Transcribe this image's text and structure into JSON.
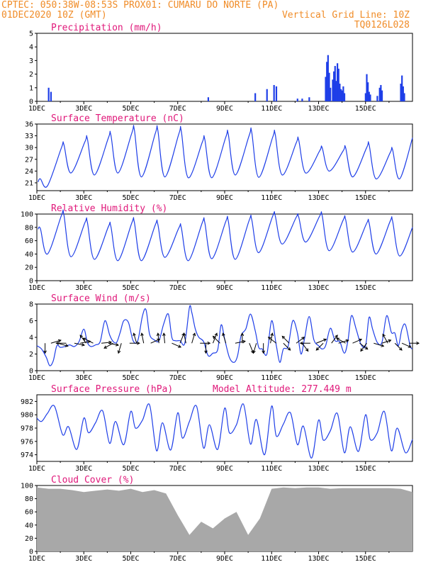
{
  "header": {
    "line1_left": "CPTEC:  050:38W-08:53S  PROX01: CUMARU DO NORTE (PA)",
    "line2_left": "01DEC2020 10Z (GMT)",
    "line2_right": "Vertical Grid Line: 10Z",
    "line3_right": "TQ0126L028"
  },
  "colors": {
    "series": "#1f3fe8",
    "cloud": "#a8a8a8",
    "header": "#f08c28",
    "title": "#e0187a"
  },
  "chart_data": [
    {
      "id": "precip",
      "type": "bar",
      "title": "Precipitation (mm/h)",
      "ylim": [
        0,
        5
      ],
      "yticks": [
        "0",
        "1",
        "2",
        "3",
        "4",
        "5"
      ],
      "xticks": [
        "1DEC",
        "3DEC",
        "5DEC",
        "7DEC",
        "9DEC",
        "11DEC",
        "13DEC",
        "15DEC"
      ],
      "x_days": [
        0.5,
        0.6,
        7.3,
        9.3,
        9.8,
        10.1,
        10.2,
        11.1,
        11.3,
        11.6,
        12.3,
        12.35,
        12.4,
        12.45,
        12.5,
        12.6,
        12.65,
        12.7,
        12.75,
        12.8,
        12.85,
        12.9,
        12.95,
        13.0,
        13.05,
        13.1,
        14.0,
        14.05,
        14.1,
        14.15,
        14.2,
        14.5,
        14.6,
        14.65,
        14.7,
        15.5,
        15.55,
        15.6,
        15.65
      ],
      "values": [
        1.0,
        0.7,
        0.3,
        0.6,
        0.9,
        1.2,
        1.1,
        0.2,
        0.2,
        0.3,
        1.8,
        2.9,
        3.4,
        2.1,
        1.0,
        1.6,
        2.2,
        2.6,
        1.5,
        2.8,
        2.4,
        1.3,
        0.9,
        0.8,
        1.1,
        0.6,
        0.6,
        2.0,
        1.4,
        0.7,
        0.5,
        0.4,
        1.0,
        1.2,
        0.8,
        1.3,
        1.9,
        1.1,
        0.6
      ]
    },
    {
      "id": "temp",
      "type": "line",
      "title": "Surface Temperature (nC)",
      "ylim": [
        19,
        36
      ],
      "yticks": [
        "21",
        "24",
        "27",
        "30",
        "33",
        "36"
      ],
      "xticks": [
        "1DEC",
        "3DEC",
        "5DEC",
        "7DEC",
        "9DEC",
        "11DEC",
        "13DEC",
        "15DEC"
      ],
      "daily_min": [
        20.2,
        23.5,
        23.0,
        23.5,
        22.5,
        22.5,
        22.3,
        22.3,
        23.0,
        22.4,
        23.0,
        23.5,
        24.0,
        22.5,
        22.0,
        22.0
      ],
      "daily_max": [
        22.0,
        30.8,
        32.3,
        33.3,
        34.6,
        34.5,
        34.3,
        32.2,
        33.5,
        34.0,
        33.5,
        32.0,
        30.0,
        30.0,
        30.8,
        29.5,
        32.5
      ]
    },
    {
      "id": "rh",
      "type": "line",
      "title": "Relative Humidity (%)",
      "ylim": [
        0,
        100
      ],
      "yticks": [
        "0",
        "20",
        "40",
        "60",
        "80",
        "100"
      ],
      "xticks": [
        "1DEC",
        "3DEC",
        "5DEC",
        "7DEC",
        "9DEC",
        "11DEC",
        "13DEC",
        "15DEC"
      ],
      "daily_max": [
        78,
        99,
        88,
        82,
        88,
        85,
        80,
        88,
        90,
        92,
        98,
        96,
        98,
        92,
        87,
        90,
        80
      ],
      "daily_min": [
        40,
        36,
        32,
        30,
        30,
        35,
        30,
        33,
        32,
        42,
        55,
        58,
        45,
        43,
        40,
        37,
        45
      ]
    },
    {
      "id": "wind",
      "type": "line",
      "title": "Surface Wind (m/s)",
      "ylim": [
        0,
        8
      ],
      "yticks": [
        "0",
        "2",
        "4",
        "6",
        "8"
      ],
      "xticks": [
        "1DEC",
        "3DEC",
        "5DEC",
        "7DEC",
        "9DEC",
        "11DEC",
        "13DEC",
        "15DEC"
      ],
      "x_days": [
        0,
        0.2,
        0.4,
        0.55,
        0.7,
        0.85,
        1.0,
        1.2,
        1.4,
        1.6,
        1.8,
        2.0,
        2.15,
        2.3,
        2.5,
        2.7,
        2.9,
        3.1,
        3.25,
        3.4,
        3.55,
        3.7,
        3.9,
        4.1,
        4.3,
        4.5,
        4.65,
        4.8,
        5.0,
        5.2,
        5.4,
        5.6,
        5.75,
        5.9,
        6.1,
        6.3,
        6.5,
        6.6,
        6.75,
        6.9,
        7.1,
        7.3,
        7.5,
        7.7,
        7.85,
        8.0,
        8.2,
        8.4,
        8.55,
        8.7,
        8.9,
        9.1,
        9.3,
        9.45,
        9.6,
        9.8,
        10.0,
        10.2,
        10.35,
        10.5,
        10.7,
        10.9,
        11.1,
        11.25,
        11.4,
        11.6,
        11.8,
        12.0,
        12.15,
        12.3,
        12.5,
        12.7,
        12.9,
        13.1,
        13.25,
        13.4,
        13.6,
        13.8,
        14.0,
        14.15,
        14.3,
        14.5,
        14.7,
        14.9,
        15.1,
        15.25,
        15.4,
        15.55,
        15.7,
        15.9,
        16.0
      ],
      "values": [
        3.0,
        2.6,
        1.6,
        0.6,
        1.2,
        3.0,
        2.8,
        2.9,
        3.1,
        2.9,
        3.5,
        5.0,
        3.4,
        2.9,
        3.1,
        3.5,
        6.0,
        4.3,
        3.5,
        3.4,
        4.6,
        6.0,
        5.8,
        3.6,
        3.6,
        6.6,
        7.3,
        4.4,
        3.7,
        3.6,
        5.6,
        6.8,
        4.0,
        3.6,
        3.6,
        3.3,
        7.6,
        7.0,
        5.0,
        4.0,
        3.5,
        1.8,
        2.1,
        2.5,
        5.5,
        3.8,
        1.6,
        1.0,
        1.8,
        4.2,
        5.0,
        6.8,
        4.8,
        2.8,
        2.6,
        2.0,
        6.0,
        3.0,
        1.0,
        2.6,
        2.9,
        6.0,
        4.5,
        2.0,
        3.8,
        6.5,
        3.7,
        3.0,
        2.6,
        3.0,
        5.1,
        3.6,
        3.5,
        2.1,
        3.6,
        6.6,
        5.0,
        3.2,
        3.0,
        6.4,
        5.0,
        3.4,
        3.4,
        6.6,
        4.6,
        4.5,
        3.0,
        5.0,
        5.5,
        3.0,
        2.6
      ],
      "barbs": [
        [
          0.35,
          0,
          -1
        ],
        [
          0.6,
          1,
          0.3
        ],
        [
          0.9,
          1,
          -0.3
        ],
        [
          1.25,
          -1,
          0
        ],
        [
          1.6,
          1,
          -0.2
        ],
        [
          1.85,
          1,
          0.2
        ],
        [
          2.1,
          -0.6,
          0.8
        ],
        [
          2.4,
          -1,
          0.5
        ],
        [
          2.75,
          1,
          0.1
        ],
        [
          3.05,
          1,
          -0.2
        ],
        [
          3.25,
          -0.9,
          -0.5
        ],
        [
          3.6,
          -0.3,
          -1
        ],
        [
          3.95,
          1,
          0
        ],
        [
          4.25,
          -0.3,
          1
        ],
        [
          4.55,
          -0.2,
          1
        ],
        [
          4.85,
          0.9,
          0.4
        ],
        [
          5.2,
          -0.1,
          1
        ],
        [
          5.45,
          -0.1,
          1
        ],
        [
          5.75,
          0.9,
          -0.4
        ],
        [
          6.1,
          0.4,
          1
        ],
        [
          6.35,
          -0.2,
          1
        ],
        [
          6.6,
          0.3,
          1
        ],
        [
          6.95,
          1,
          0
        ],
        [
          7.2,
          0,
          -1
        ],
        [
          7.5,
          0.4,
          1
        ],
        [
          7.8,
          -0.7,
          0.7
        ],
        [
          8.05,
          -0.3,
          1
        ],
        [
          8.45,
          1,
          0.2
        ],
        [
          8.75,
          0,
          1
        ],
        [
          9.05,
          0.4,
          -1
        ],
        [
          9.35,
          -0.3,
          -1
        ],
        [
          9.65,
          0,
          -1
        ],
        [
          9.95,
          0.2,
          1
        ],
        [
          10.2,
          -0.8,
          0.6
        ],
        [
          10.5,
          0.7,
          -0.7
        ],
        [
          10.75,
          -0.7,
          0.7
        ],
        [
          11.05,
          0.8,
          0.6
        ],
        [
          11.3,
          0.6,
          -0.8
        ],
        [
          11.65,
          -1,
          0
        ],
        [
          11.9,
          1,
          0.4
        ],
        [
          12.2,
          -0.7,
          -0.7
        ],
        [
          12.55,
          0.6,
          0.8
        ],
        [
          12.85,
          1,
          0.3
        ],
        [
          13.15,
          -0.9,
          0.5
        ],
        [
          13.45,
          0.9,
          0.4
        ],
        [
          13.75,
          0.8,
          -0.6
        ],
        [
          14.05,
          -0.6,
          -0.8
        ],
        [
          14.35,
          1,
          -0.3
        ],
        [
          14.7,
          0.9,
          0.3
        ],
        [
          14.95,
          -0.5,
          0.9
        ],
        [
          15.25,
          0.7,
          -0.7
        ],
        [
          15.55,
          0.9,
          -0.4
        ],
        [
          15.85,
          1,
          0
        ]
      ]
    },
    {
      "id": "pressure",
      "type": "line",
      "title": "Surface Pressure (hPa)",
      "annotation": "Model Altitude: 277.449 m",
      "ylim": [
        973,
        983
      ],
      "yticks": [
        "974",
        "976",
        "978",
        "980",
        "982"
      ],
      "xticks": [
        "1DEC",
        "3DEC",
        "5DEC",
        "7DEC",
        "9DEC",
        "11DEC",
        "13DEC",
        "15DEC"
      ],
      "x_days": [
        0,
        0.2,
        0.45,
        0.75,
        1.1,
        1.35,
        1.7,
        2.0,
        2.2,
        2.5,
        2.8,
        3.1,
        3.35,
        3.7,
        4.0,
        4.2,
        4.5,
        4.8,
        5.1,
        5.35,
        5.7,
        6.0,
        6.2,
        6.5,
        6.8,
        7.1,
        7.35,
        7.7,
        8.0,
        8.2,
        8.5,
        8.8,
        9.1,
        9.35,
        9.7,
        10.0,
        10.2,
        10.5,
        10.8,
        11.1,
        11.35,
        11.7,
        12.0,
        12.2,
        12.5,
        12.8,
        13.1,
        13.35,
        13.7,
        14.0,
        14.2,
        14.5,
        14.8,
        15.1,
        15.35,
        15.7,
        16.0
      ],
      "values": [
        979.5,
        979.0,
        980.2,
        981.3,
        977.0,
        978.2,
        974.8,
        979.5,
        977.3,
        978.8,
        980.6,
        975.7,
        979.0,
        975.5,
        980.5,
        978.0,
        979.2,
        981.5,
        974.6,
        978.8,
        974.7,
        980.3,
        976.5,
        979.0,
        981.3,
        975.0,
        978.5,
        974.8,
        981.0,
        977.3,
        978.5,
        981.6,
        975.6,
        979.3,
        974.0,
        981.3,
        976.8,
        978.6,
        980.3,
        975.5,
        978.3,
        973.5,
        979.2,
        976.2,
        977.6,
        980.2,
        974.3,
        978.2,
        974.5,
        980.0,
        976.3,
        977.3,
        980.5,
        974.6,
        978.0,
        974.3,
        976.3
      ]
    },
    {
      "id": "cloud",
      "type": "area",
      "title": "Cloud Cover (%)",
      "ylim": [
        0,
        100
      ],
      "yticks": [
        "0",
        "20",
        "40",
        "60",
        "80",
        "100"
      ],
      "xticks": [
        "1DEC",
        "3DEC",
        "5DEC",
        "7DEC",
        "9DEC",
        "11DEC",
        "13DEC",
        "15DEC"
      ],
      "x_days": [
        0,
        0.5,
        1.0,
        1.5,
        2.0,
        2.5,
        3.0,
        3.5,
        4.0,
        4.5,
        5.0,
        5.5,
        6.0,
        6.5,
        7.0,
        7.5,
        8.0,
        8.5,
        9.0,
        9.5,
        10.0,
        10.5,
        11.0,
        11.5,
        12.0,
        12.5,
        13.0,
        13.5,
        14.0,
        14.5,
        15.0,
        15.5,
        16.0
      ],
      "values": [
        97,
        95,
        95,
        93,
        90,
        92,
        94,
        92,
        95,
        90,
        93,
        88,
        55,
        25,
        45,
        35,
        50,
        60,
        25,
        50,
        95,
        97,
        96,
        97,
        97,
        95,
        96,
        96,
        96,
        96,
        96,
        95,
        90
      ]
    }
  ]
}
